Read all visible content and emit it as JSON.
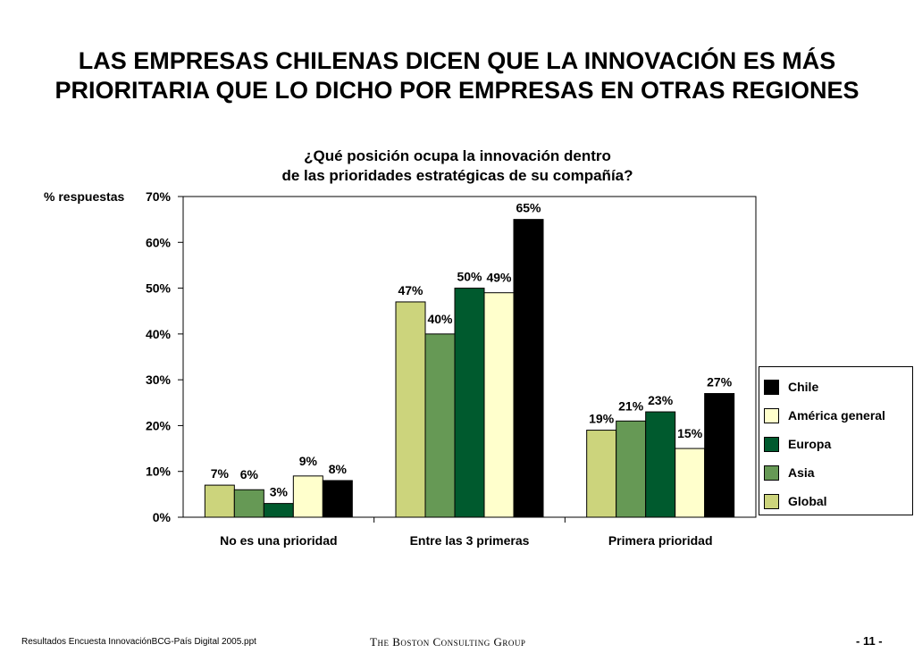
{
  "slide": {
    "title_line1": "LAS EMPRESAS CHILENAS DICEN QUE LA INNOVACIÓN ES MÁS",
    "title_line2": "PRIORITARIA QUE LO DICHO POR EMPRESAS EN OTRAS REGIONES",
    "footer_left": "Resultados Encuesta InnovaciónBCG-País Digital 2005.ppt",
    "footer_center": "The Boston Consulting Group",
    "footer_right": "- 11 -"
  },
  "chart_data": {
    "type": "bar",
    "title_line1": "¿Qué posición ocupa la innovación dentro",
    "title_line2": "de las prioridades estratégicas de su compañía?",
    "ylabel": "% respuestas",
    "ylim": [
      0,
      70
    ],
    "yticks": [
      0,
      10,
      20,
      30,
      40,
      50,
      60,
      70
    ],
    "ytick_labels": [
      "0%",
      "10%",
      "20%",
      "30%",
      "40%",
      "50%",
      "60%",
      "70%"
    ],
    "categories": [
      "No es una prioridad",
      "Entre las 3 primeras",
      "Primera prioridad"
    ],
    "series": [
      {
        "name": "Global",
        "color": "#ccd47c",
        "values": [
          7,
          47,
          19
        ]
      },
      {
        "name": "Asia",
        "color": "#669955",
        "values": [
          6,
          40,
          21
        ]
      },
      {
        "name": "Europa",
        "color": "#005a2e",
        "values": [
          3,
          50,
          23
        ]
      },
      {
        "name": "América general",
        "color": "#ffffcc",
        "values": [
          9,
          49,
          15
        ]
      },
      {
        "name": "Chile",
        "color": "#000000",
        "values": [
          8,
          65,
          27
        ]
      }
    ],
    "legend_order": [
      "Chile",
      "América general",
      "Europa",
      "Asia",
      "Global"
    ],
    "legend_position": "right",
    "grid": false
  }
}
